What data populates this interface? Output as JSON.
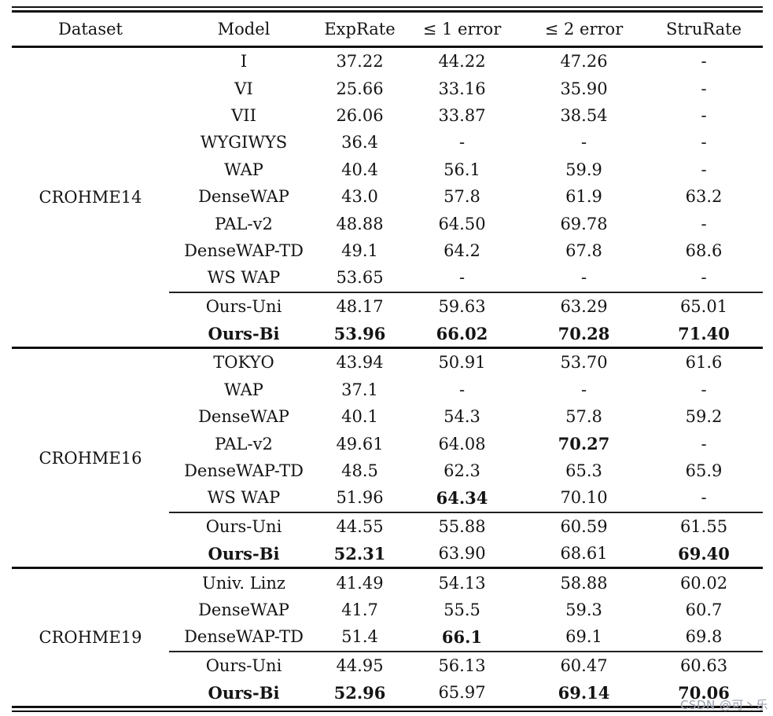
{
  "colors": {
    "rule": "#101010",
    "text": "#141414",
    "watermark": "#9aa0ad"
  },
  "watermark": "CSDN @可丶乐",
  "table": {
    "columns": [
      "Dataset",
      "Model",
      "ExpRate",
      "≤ 1 error",
      "≤ 2 error",
      "StruRate"
    ],
    "groups": [
      {
        "dataset": "CROHME14",
        "baseline_rows": [
          {
            "cells": [
              "I",
              "37.22",
              "44.22",
              "47.26",
              "-"
            ]
          },
          {
            "cells": [
              "VI",
              "25.66",
              "33.16",
              "35.90",
              "-"
            ]
          },
          {
            "cells": [
              "VII",
              "26.06",
              "33.87",
              "38.54",
              "-"
            ]
          },
          {
            "cells": [
              "WYGIWYS",
              "36.4",
              "-",
              "-",
              "-"
            ]
          },
          {
            "cells": [
              "WAP",
              "40.4",
              "56.1",
              "59.9",
              "-"
            ]
          },
          {
            "cells": [
              "DenseWAP",
              "43.0",
              "57.8",
              "61.9",
              "63.2"
            ]
          },
          {
            "cells": [
              "PAL-v2",
              "48.88",
              "64.50",
              "69.78",
              "-"
            ]
          },
          {
            "cells": [
              "DenseWAP-TD",
              "49.1",
              "64.2",
              "67.8",
              "68.6"
            ]
          },
          {
            "cells": [
              "WS WAP",
              "53.65",
              "-",
              "-",
              "-"
            ]
          }
        ],
        "ours_rows": [
          {
            "cells": [
              "Ours-Uni",
              "48.17",
              "59.63",
              "63.29",
              "65.01"
            ]
          },
          {
            "cells": [
              "Ours-Bi",
              "53.96",
              "66.02",
              "70.28",
              "71.40"
            ],
            "bold": [
              1,
              1,
              1,
              1,
              1
            ]
          }
        ]
      },
      {
        "dataset": "CROHME16",
        "baseline_rows": [
          {
            "cells": [
              "TOKYO",
              "43.94",
              "50.91",
              "53.70",
              "61.6"
            ]
          },
          {
            "cells": [
              "WAP",
              "37.1",
              "-",
              "-",
              "-"
            ]
          },
          {
            "cells": [
              "DenseWAP",
              "40.1",
              "54.3",
              "57.8",
              "59.2"
            ]
          },
          {
            "cells": [
              "PAL-v2",
              "49.61",
              "64.08",
              "70.27",
              "-"
            ],
            "bold": [
              0,
              0,
              0,
              1,
              0
            ]
          },
          {
            "cells": [
              "DenseWAP-TD",
              "48.5",
              "62.3",
              "65.3",
              "65.9"
            ]
          },
          {
            "cells": [
              "WS WAP",
              "51.96",
              "64.34",
              "70.10",
              "-"
            ],
            "bold": [
              0,
              0,
              1,
              0,
              0
            ]
          }
        ],
        "ours_rows": [
          {
            "cells": [
              "Ours-Uni",
              "44.55",
              "55.88",
              "60.59",
              "61.55"
            ]
          },
          {
            "cells": [
              "Ours-Bi",
              "52.31",
              "63.90",
              "68.61",
              "69.40"
            ],
            "bold": [
              1,
              1,
              0,
              0,
              1
            ]
          }
        ]
      },
      {
        "dataset": "CROHME19",
        "baseline_rows": [
          {
            "cells": [
              "Univ. Linz",
              "41.49",
              "54.13",
              "58.88",
              "60.02"
            ]
          },
          {
            "cells": [
              "DenseWAP",
              "41.7",
              "55.5",
              "59.3",
              "60.7"
            ]
          },
          {
            "cells": [
              "DenseWAP-TD",
              "51.4",
              "66.1",
              "69.1",
              "69.8"
            ],
            "bold": [
              0,
              0,
              1,
              0,
              0
            ]
          }
        ],
        "ours_rows": [
          {
            "cells": [
              "Ours-Uni",
              "44.95",
              "56.13",
              "60.47",
              "60.63"
            ]
          },
          {
            "cells": [
              "Ours-Bi",
              "52.96",
              "65.97",
              "69.14",
              "70.06"
            ],
            "bold": [
              1,
              1,
              0,
              1,
              1
            ]
          }
        ]
      }
    ]
  }
}
